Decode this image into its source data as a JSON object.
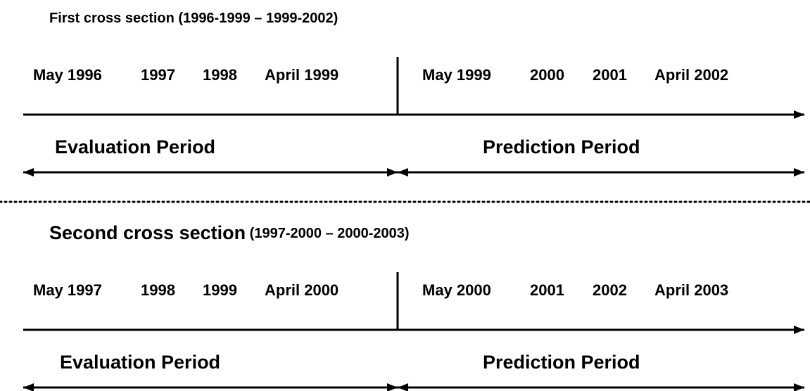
{
  "sections": [
    {
      "name": "First cross section",
      "range": "(1996-1999 – 1999-2002)",
      "evaluation_labels": [
        "May 1996",
        "1997",
        "1998",
        "April 1999"
      ],
      "prediction_labels": [
        "May 1999",
        "2000",
        "2001",
        "April 2002"
      ],
      "evaluation_period": "Evaluation Period",
      "prediction_period": "Prediction Period"
    },
    {
      "name": "Second cross section",
      "range": "(1997-2000 – 2000-2003)",
      "evaluation_labels": [
        "May 1997",
        "1998",
        "1999",
        "April 2000"
      ],
      "prediction_labels": [
        "May 2000",
        "2001",
        "2002",
        "April 2003"
      ],
      "evaluation_period": "Evaluation Period",
      "prediction_period": "Prediction Period"
    }
  ]
}
